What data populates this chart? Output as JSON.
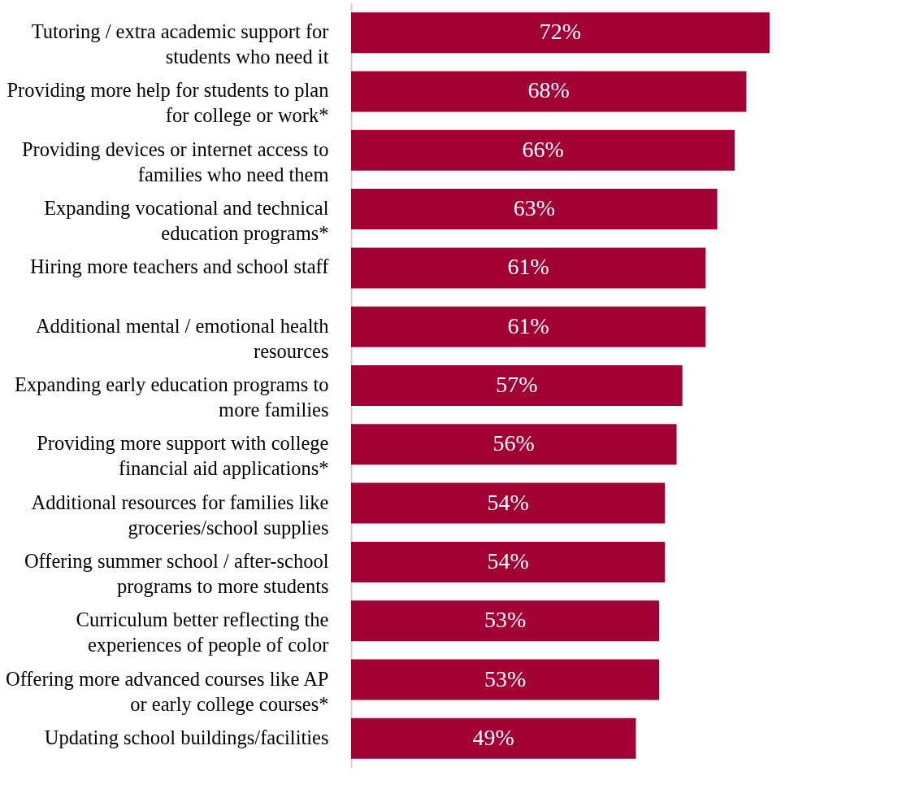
{
  "chart_data": {
    "type": "bar",
    "orientation": "horizontal",
    "categories": [
      "Tutoring / extra academic support for students who need it",
      "Providing more help for students to plan for college or work*",
      "Providing devices or internet access to families who need them",
      "Expanding vocational and technical education programs*",
      "Hiring more teachers and school staff",
      "Additional mental / emotional health resources",
      "Expanding early education programs to more families",
      "Providing more support with college financial aid applications*",
      "Additional resources for families like groceries/school supplies",
      "Offering summer school / after-school programs to more students",
      "Curriculum better reflecting the experiences of people of color",
      "Offering more advanced courses like AP or early college courses*",
      "Updating school buildings/facilities"
    ],
    "values": [
      72,
      68,
      66,
      63,
      61,
      61,
      57,
      56,
      54,
      54,
      53,
      53,
      49
    ],
    "value_labels": [
      "72%",
      "68%",
      "66%",
      "63%",
      "61%",
      "61%",
      "57%",
      "56%",
      "54%",
      "54%",
      "53%",
      "53%",
      "49%"
    ],
    "color": "#a00034"
  }
}
